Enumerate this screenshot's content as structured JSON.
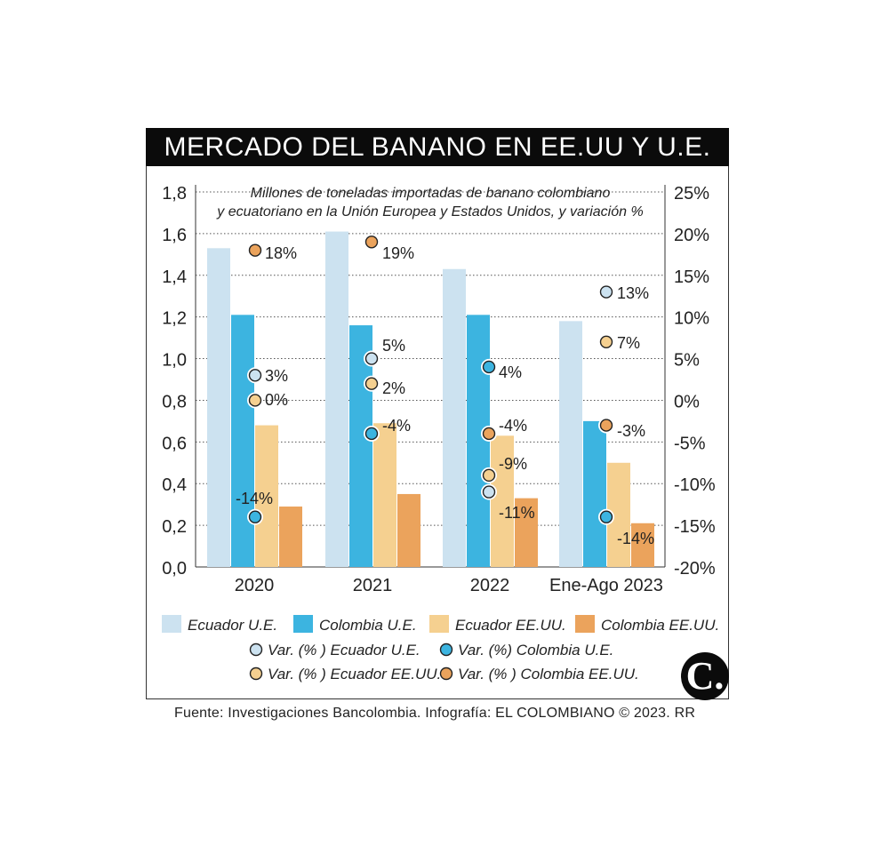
{
  "header": {
    "title": "MERCADO DEL BANANO EN EE.UU Y U.E."
  },
  "footer": {
    "source": "Fuente: Investigaciones Bancolombia. Infografía: EL COLOMBIANO © 2023. RR",
    "logo_text": "C."
  },
  "chart_data": {
    "type": "bar",
    "subtitle": "Millones de toneladas importadas de banano colombiano y ecuatoriano en la Unión Europea y Estados Unidos, y variación %",
    "subtitle_lines": [
      "Millones de toneladas importadas de banano colombiano",
      "y ecuatoriano en la Unión Europea y Estados Unidos, y variación %"
    ],
    "categories": [
      "2020",
      "2021",
      "2022",
      "Ene-Ago 2023"
    ],
    "y_left": {
      "range": [
        0,
        1.8
      ],
      "ticks": [
        0,
        0.2,
        0.4,
        0.6,
        0.8,
        1.0,
        1.2,
        1.4,
        1.6,
        1.8
      ],
      "tick_labels": [
        "0,0",
        "0,2",
        "0,4",
        "0,6",
        "0,8",
        "1,0",
        "1,2",
        "1,4",
        "1,6",
        "1,8"
      ]
    },
    "y_right": {
      "range": [
        -20,
        25
      ],
      "ticks": [
        -20,
        -15,
        -10,
        -5,
        0,
        5,
        10,
        15,
        20,
        25
      ],
      "tick_labels": [
        "-20%",
        "-15%",
        "-10%",
        "-5%",
        "0%",
        "5%",
        "10%",
        "15%",
        "20%",
        "25%"
      ]
    },
    "grid": "horizontal-dotted",
    "series": [
      {
        "name": "Ecuador U.E.",
        "color": "#cce2f0",
        "values": [
          1.53,
          1.61,
          1.43,
          1.18
        ]
      },
      {
        "name": "Colombia U.E.",
        "color": "#3cb4e0",
        "values": [
          1.21,
          1.16,
          1.21,
          0.7
        ]
      },
      {
        "name": "Ecuador EE.UU.",
        "color": "#f5d090",
        "values": [
          0.68,
          0.69,
          0.63,
          0.5
        ]
      },
      {
        "name": "Colombia EE.UU.",
        "color": "#eba35c",
        "values": [
          0.29,
          0.35,
          0.33,
          0.21
        ]
      }
    ],
    "variation_series": [
      {
        "name": "Var. (% ) Ecuador U.E.",
        "color": "#cce2f0",
        "values": [
          3,
          5,
          -11,
          13
        ],
        "labels": [
          "3%",
          "5%",
          "-11%",
          "13%"
        ]
      },
      {
        "name": "Var. (%) Colombia U.E.",
        "color": "#3cb4e0",
        "values": [
          -14,
          -4,
          4,
          -14
        ],
        "labels": [
          "-14%",
          "-4%",
          "4%",
          "-14%"
        ]
      },
      {
        "name": "Var. (% ) Ecuador EE.UU.",
        "color": "#f5d090",
        "values": [
          0,
          2,
          -9,
          7
        ],
        "labels": [
          "0%",
          "2%",
          "-9%",
          "7%"
        ]
      },
      {
        "name": "Var. (% ) Colombia EE.UU.",
        "color": "#eba35c",
        "values": [
          18,
          19,
          -4,
          -3
        ],
        "labels": [
          "18%",
          "19%",
          "-4%",
          "-3%"
        ]
      }
    ]
  }
}
